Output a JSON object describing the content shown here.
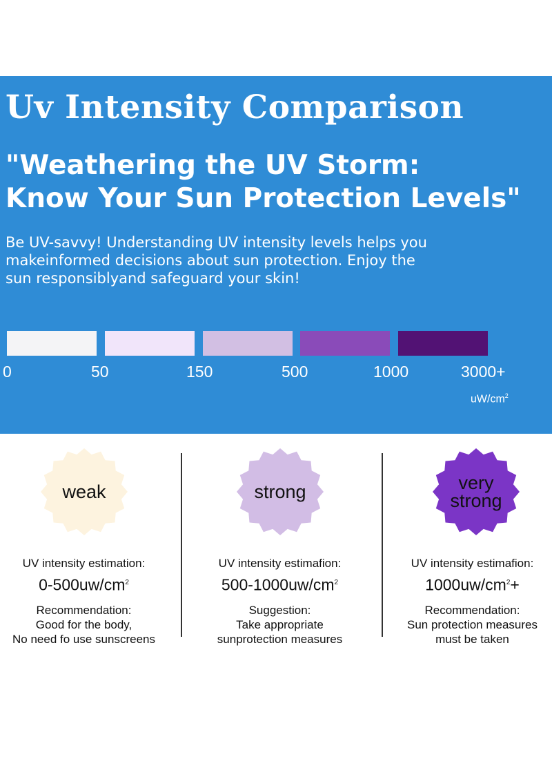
{
  "header": {
    "title": "Uv Intensity Comparison",
    "subtitle_lines": [
      "\"Weathering the UV Storm:",
      "Know Your Sun Protection Levels\""
    ],
    "intro_lines": [
      "Be UV-savvy! Understanding UV intensity levels helps you",
      "makeinformed decisions about sun protection. Enjoy the",
      "sun responsiblyand safeguard your skin!"
    ]
  },
  "scale": {
    "swatch_colors": [
      "#f4f4f6",
      "#f1e5fa",
      "#d2bfe3",
      "#8a4bb9",
      "#521274"
    ],
    "ticks": [
      "0",
      "50",
      "150",
      "500",
      "1000",
      "3000+"
    ],
    "unit": "uW/cm",
    "unit_sup": "2"
  },
  "levels": [
    {
      "badge_lines": [
        "weak"
      ],
      "badge_color": "#fdf3df",
      "text_color": "#111111",
      "estimation_label": "UV intensity estimation:",
      "range": "0-500uw/cm",
      "range_sup": "2",
      "range_suffix": "",
      "advice_lines": [
        "Recommendation:",
        "Good for the body,",
        "No need fo use sunscreens"
      ]
    },
    {
      "badge_lines": [
        "strong"
      ],
      "badge_color": "#d2bde5",
      "text_color": "#111111",
      "estimation_label": "UV intensity estimafion:",
      "range": "500-1000uw/cm",
      "range_sup": "2",
      "range_suffix": "",
      "advice_lines": [
        "Suggestion:",
        "Take appropriate",
        "sunprotection measures"
      ]
    },
    {
      "badge_lines": [
        "very",
        "strong"
      ],
      "badge_color": "#7b35c6",
      "text_color": "#111111",
      "estimation_label": "UV intensity estimafion:",
      "range": "1000uw/cm",
      "range_sup": "2",
      "range_suffix": "+",
      "advice_lines": [
        "Recommendation:",
        "Sun protection measures",
        "must be taken"
      ]
    }
  ]
}
